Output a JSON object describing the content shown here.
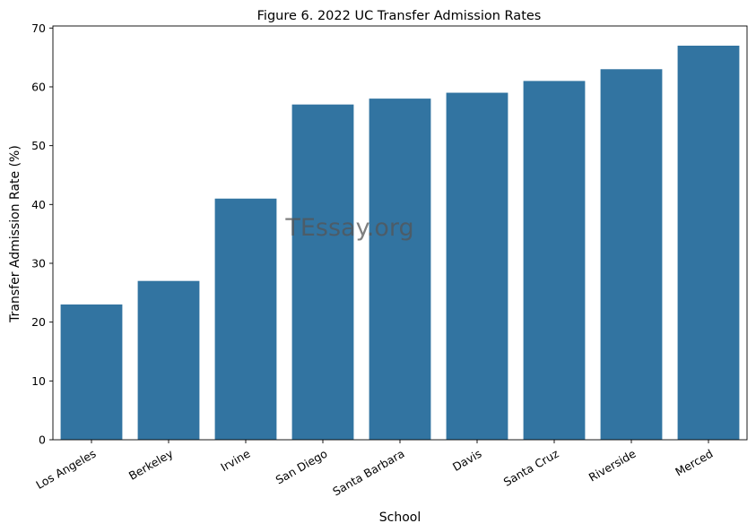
{
  "chart_data": {
    "type": "bar",
    "title": "Figure 6. 2022 UC Transfer Admission Rates",
    "xlabel": "School",
    "ylabel": "Transfer Admission Rate (%)",
    "categories": [
      "Los Angeles",
      "Berkeley",
      "Irvine",
      "San Diego",
      "Santa Barbara",
      "Davis",
      "Santa Cruz",
      "Riverside",
      "Merced"
    ],
    "values": [
      23,
      27,
      41,
      57,
      58,
      59,
      61,
      63,
      67
    ],
    "ylim": [
      0,
      70.35
    ],
    "yticks": [
      0,
      10,
      20,
      30,
      40,
      50,
      60,
      70
    ],
    "grid": false,
    "bar_color": "#3274a1"
  },
  "watermark": "TEssay.org"
}
